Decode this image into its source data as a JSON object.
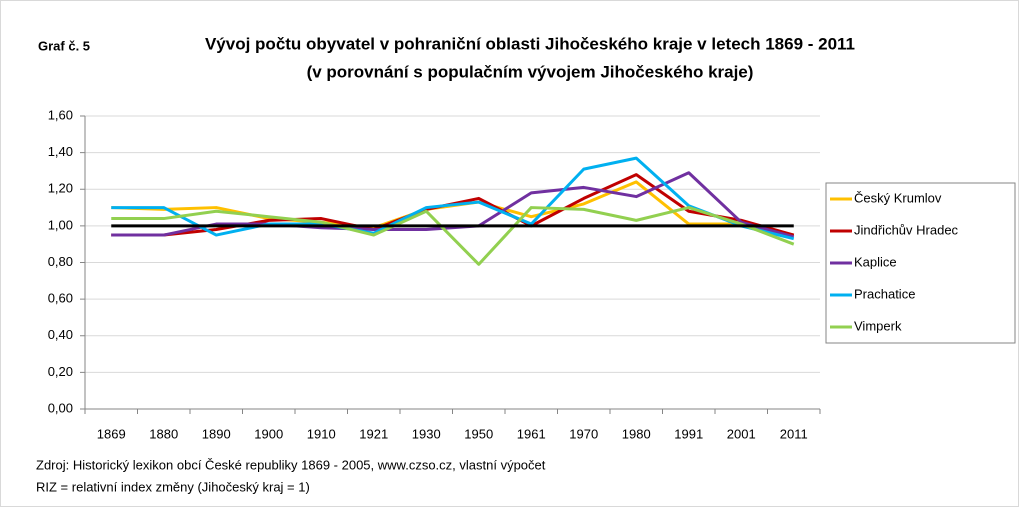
{
  "chart_data": {
    "type": "line",
    "label": "Graf č. 5",
    "title": "Vývoj počtu obyvatel v pohraniční oblasti Jihočeského kraje v letech 1869 - 2011",
    "subtitle": "(v porovnání s populačním vývojem Jihočeského kraje)",
    "notes": [
      "Zdroj: Historický lexikon obcí České republiky 1869 - 2005, www.czso.cz, vlastní výpočet",
      "RIZ = relativní index změny (Jihočeský kraj = 1)"
    ],
    "categories": [
      "1869",
      "1880",
      "1890",
      "1900",
      "1910",
      "1921",
      "1930",
      "1950",
      "1961",
      "1970",
      "1980",
      "1991",
      "2001",
      "2011"
    ],
    "series": [
      {
        "name": "Český Krumlov",
        "color": "#FFC000",
        "values": [
          1.1,
          1.09,
          1.1,
          1.04,
          1.02,
          0.99,
          1.09,
          1.13,
          1.05,
          1.12,
          1.24,
          1.01,
          1.01,
          0.95
        ]
      },
      {
        "name": "Jindřichův Hradec",
        "color": "#C00000",
        "values": [
          0.95,
          0.95,
          0.98,
          1.03,
          1.04,
          0.98,
          1.09,
          1.15,
          1.0,
          1.15,
          1.28,
          1.08,
          1.03,
          0.95
        ]
      },
      {
        "name": "Kaplice",
        "color": "#7030A0",
        "values": [
          0.95,
          0.95,
          1.01,
          1.01,
          0.99,
          0.98,
          0.98,
          1.0,
          1.18,
          1.21,
          1.16,
          1.29,
          1.02,
          0.94
        ]
      },
      {
        "name": "Prachatice",
        "color": "#00B0F0",
        "values": [
          1.1,
          1.1,
          0.95,
          1.01,
          1.01,
          0.96,
          1.1,
          1.13,
          1.01,
          1.31,
          1.37,
          1.11,
          1.0,
          0.93
        ]
      },
      {
        "name": "Vimperk",
        "color": "#92D050",
        "values": [
          1.04,
          1.04,
          1.08,
          1.05,
          1.02,
          0.95,
          1.08,
          0.79,
          1.1,
          1.09,
          1.03,
          1.1,
          1.01,
          0.9
        ]
      },
      {
        "color": "#000000",
        "values": [
          1,
          1,
          1,
          1,
          1,
          1,
          1,
          1,
          1,
          1,
          1,
          1,
          1,
          1
        ]
      }
    ],
    "ylim": [
      0,
      1.6
    ],
    "yticks": [
      {
        "value": 0,
        "label": "0,00"
      },
      {
        "value": 0.2,
        "label": "0,20"
      },
      {
        "value": 0.4,
        "label": "0,40"
      },
      {
        "value": 0.6,
        "label": "0,60"
      },
      {
        "value": 0.8,
        "label": "0,80"
      },
      {
        "value": 1,
        "label": "1,00"
      },
      {
        "value": 1.2,
        "label": "1,20"
      },
      {
        "value": 1.4,
        "label": "1,40"
      },
      {
        "value": 1.6,
        "label": "1,60"
      }
    ],
    "grid": true,
    "legend": "right"
  }
}
